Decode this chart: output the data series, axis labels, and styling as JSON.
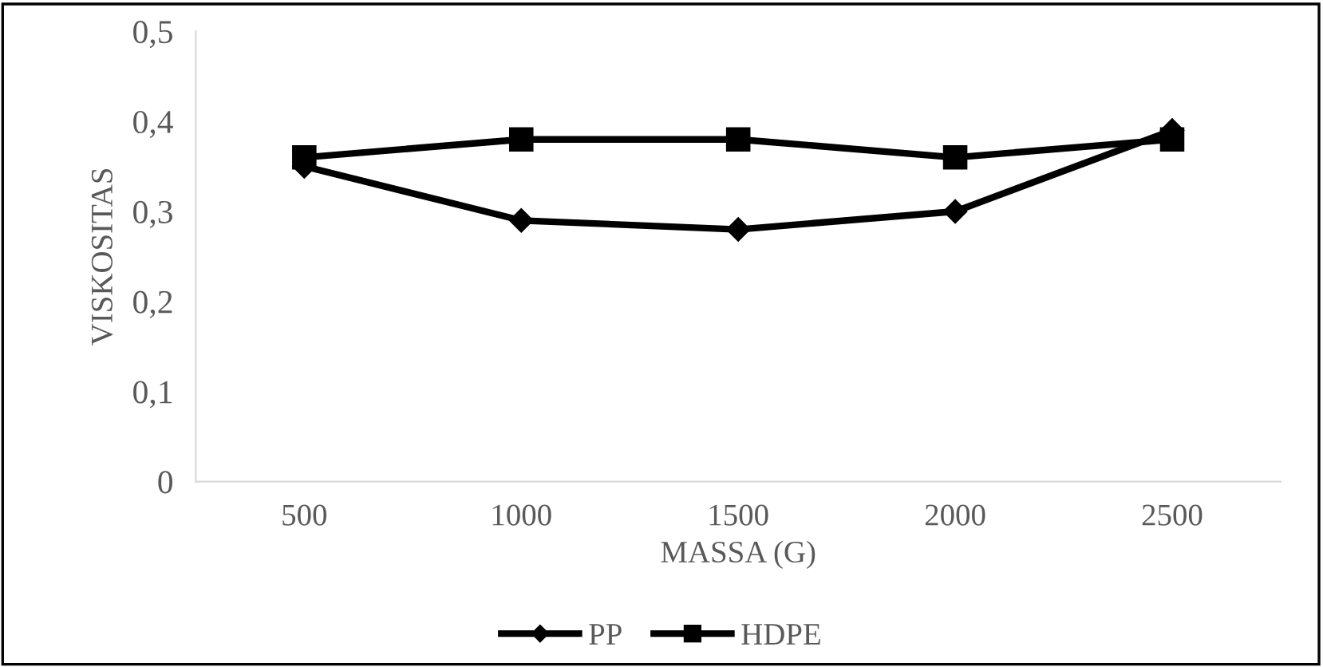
{
  "chart_data": {
    "type": "line",
    "xlabel": "MASSA (G)",
    "ylabel": "VISKOSITAS",
    "categories": [
      "500",
      "1000",
      "1500",
      "2000",
      "2500"
    ],
    "series": [
      {
        "name": "PP",
        "color": "#000000",
        "marker": "diamond",
        "values": [
          0.35,
          0.29,
          0.28,
          0.3,
          0.39
        ]
      },
      {
        "name": "HDPE",
        "color": "#000000",
        "marker": "square",
        "values": [
          0.36,
          0.38,
          0.38,
          0.36,
          0.38
        ]
      }
    ],
    "ylim": [
      0,
      0.5
    ],
    "yticks": [
      {
        "value": 0,
        "label": "0"
      },
      {
        "value": 0.1,
        "label": "0,1"
      },
      {
        "value": 0.2,
        "label": "0,2"
      },
      {
        "value": 0.3,
        "label": "0,3"
      },
      {
        "value": 0.4,
        "label": "0,4"
      },
      {
        "value": 0.5,
        "label": "0,5"
      }
    ],
    "grid": false,
    "legend": "bottom",
    "line_style": "solid"
  }
}
